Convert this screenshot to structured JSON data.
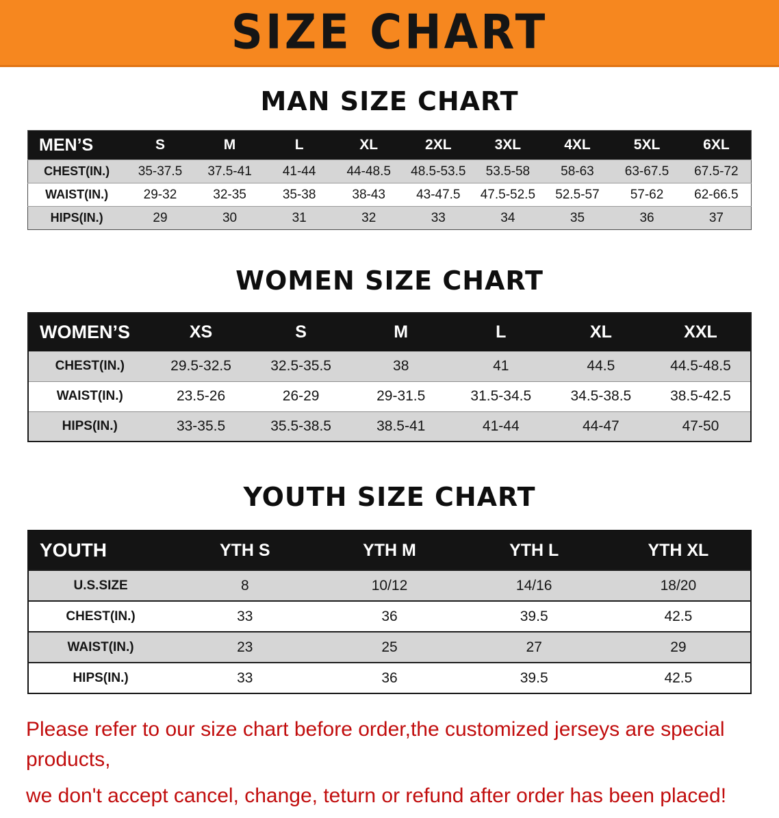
{
  "page": {
    "title": "SIZE CHART",
    "disclaimer_line1": "Please refer to our size chart before order,the customized jerseys are special products,",
    "disclaimer_line2": "we don't accept cancel, change, teturn or refund after order has been placed!"
  },
  "colors": {
    "banner_bg": "#f6871f",
    "table_header_bg": "#141414",
    "table_header_text": "#ffffff",
    "shaded_row_bg": "#d6d6d6",
    "disclaimer_red": "#c10d0d"
  },
  "tables": [
    {
      "id": "men",
      "heading": "MAN SIZE CHART",
      "header": [
        "MEN’S",
        "S",
        "M",
        "L",
        "XL",
        "2XL",
        "3XL",
        "4XL",
        "5XL",
        "6XL"
      ],
      "rows": [
        [
          "CHEST(IN.)",
          "35-37.5",
          "37.5-41",
          "41-44",
          "44-48.5",
          "48.5-53.5",
          "53.5-58",
          "58-63",
          "63-67.5",
          "67.5-72"
        ],
        [
          "WAIST(IN.)",
          "29-32",
          "32-35",
          "35-38",
          "38-43",
          "43-47.5",
          "47.5-52.5",
          "52.5-57",
          "57-62",
          "62-66.5"
        ],
        [
          "HIPS(IN.)",
          "29",
          "30",
          "31",
          "32",
          "33",
          "34",
          "35",
          "36",
          "37"
        ]
      ],
      "shaded_rows": [
        0,
        2
      ]
    },
    {
      "id": "women",
      "heading": "WOMEN SIZE CHART",
      "header": [
        "WOMEN’S",
        "XS",
        "S",
        "M",
        "L",
        "XL",
        "XXL"
      ],
      "rows": [
        [
          "CHEST(IN.)",
          "29.5-32.5",
          "32.5-35.5",
          "38",
          "41",
          "44.5",
          "44.5-48.5"
        ],
        [
          "WAIST(IN.)",
          "23.5-26",
          "26-29",
          "29-31.5",
          "31.5-34.5",
          "34.5-38.5",
          "38.5-42.5"
        ],
        [
          "HIPS(IN.)",
          "33-35.5",
          "35.5-38.5",
          "38.5-41",
          "41-44",
          "44-47",
          "47-50"
        ]
      ],
      "shaded_rows": [
        0,
        2
      ]
    },
    {
      "id": "youth",
      "heading": "YOUTH SIZE CHART",
      "header": [
        "YOUTH",
        "YTH S",
        "YTH M",
        "YTH L",
        "YTH XL"
      ],
      "rows": [
        [
          "U.S.SIZE",
          "8",
          "10/12",
          "14/16",
          "18/20"
        ],
        [
          "CHEST(IN.)",
          "33",
          "36",
          "39.5",
          "42.5"
        ],
        [
          "WAIST(IN.)",
          "23",
          "25",
          "27",
          "29"
        ],
        [
          "HIPS(IN.)",
          "33",
          "36",
          "39.5",
          "42.5"
        ]
      ],
      "shaded_rows": [
        0,
        2
      ]
    }
  ]
}
